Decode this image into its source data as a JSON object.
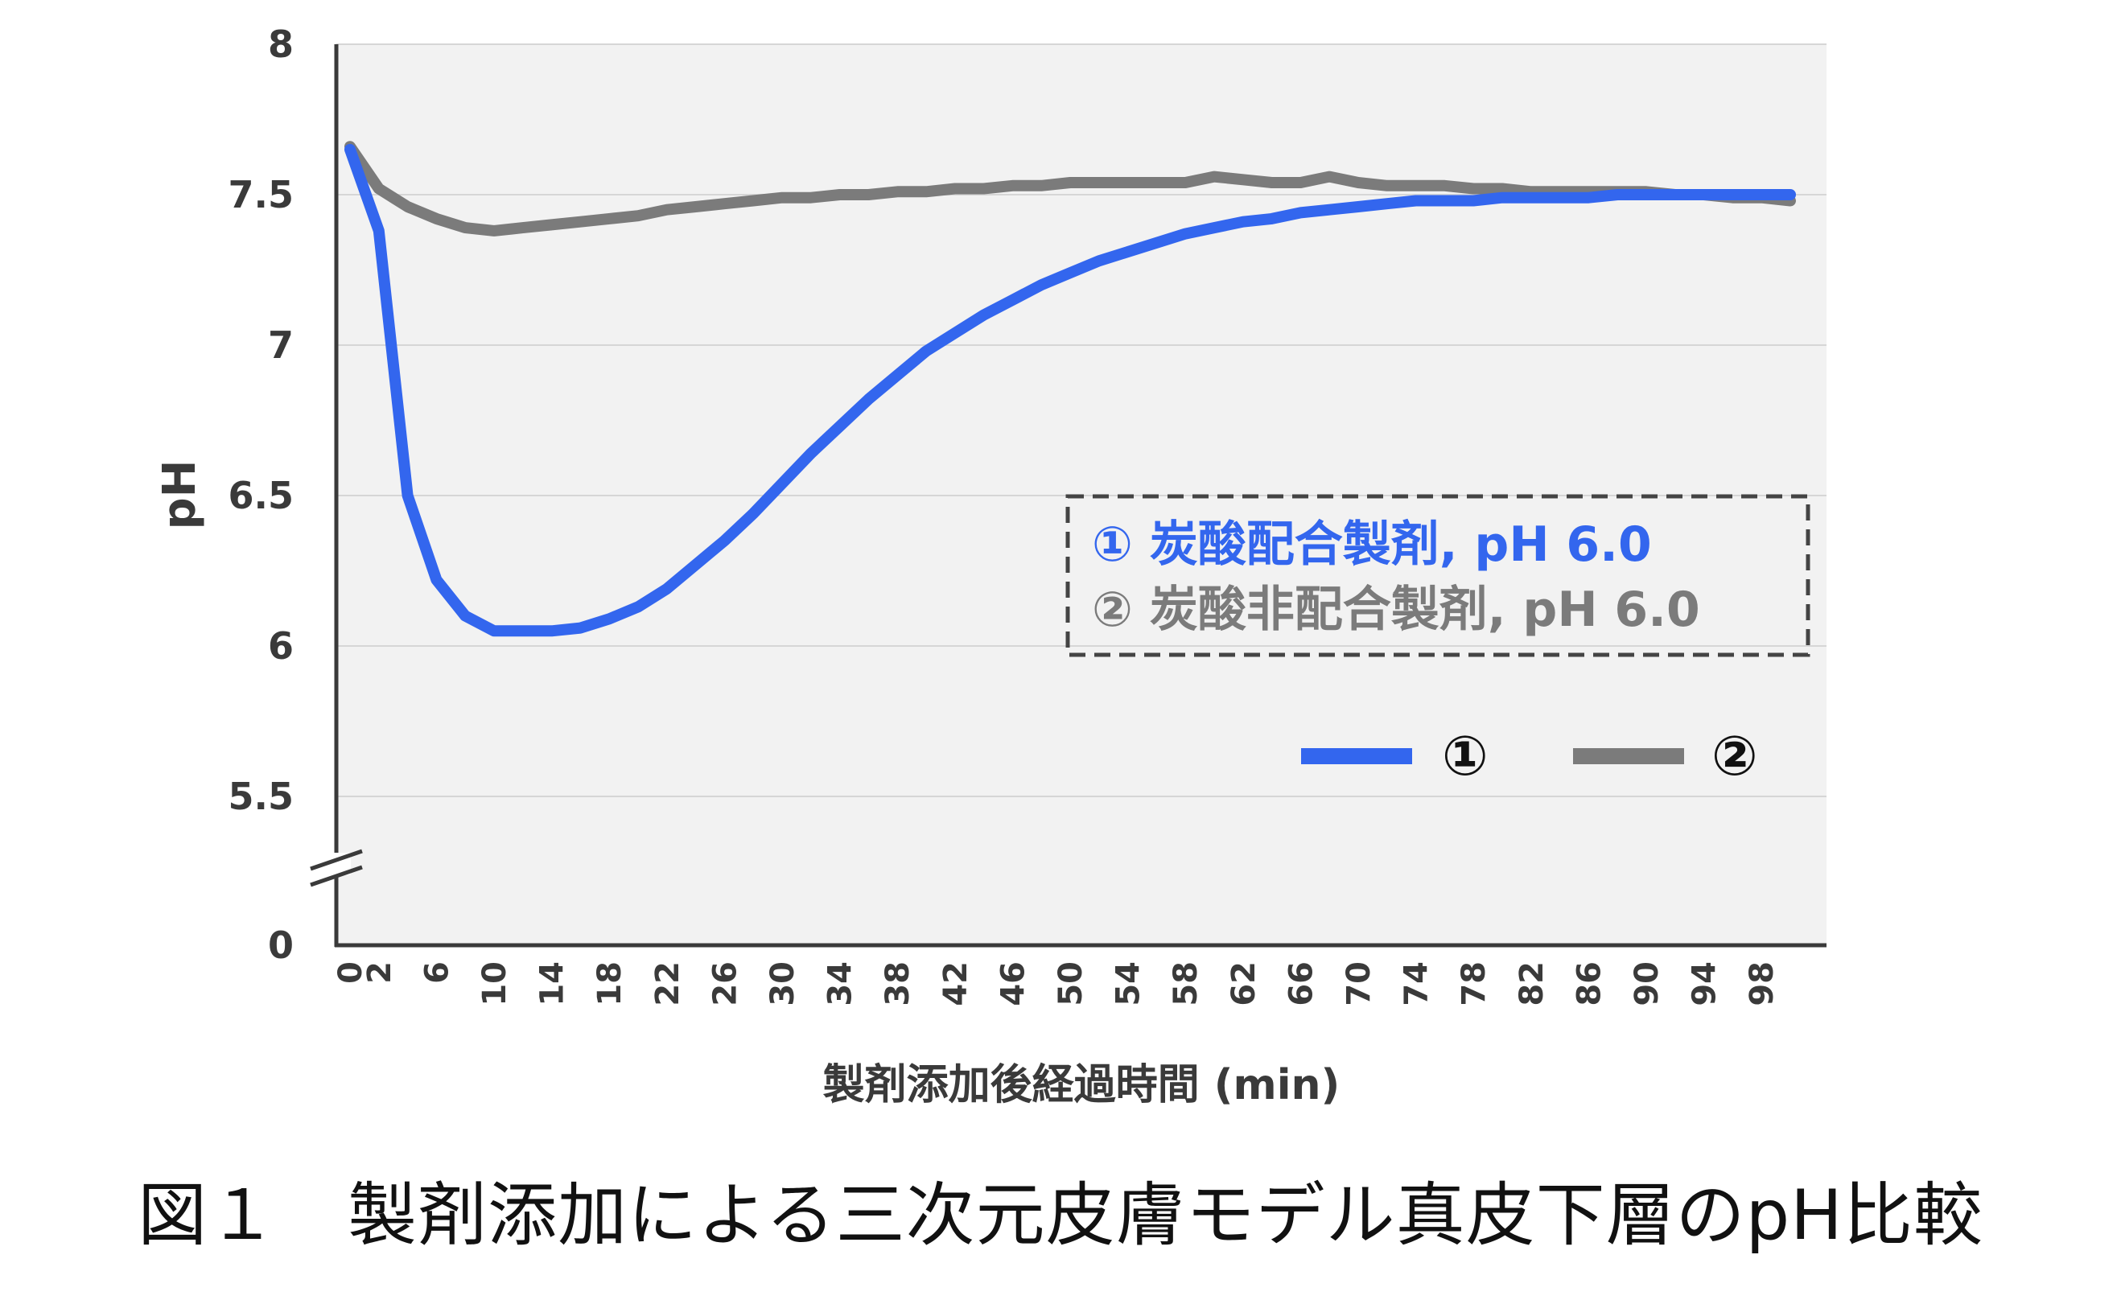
{
  "chart_data": {
    "type": "line",
    "xlabel": "製剤添加後経過時間 (min)",
    "ylabel": "pH",
    "yticks": [
      "8",
      "7.5",
      "7",
      "6.5",
      "6",
      "5.5",
      "0"
    ],
    "ylim": [
      5.0,
      8.0
    ],
    "y_axis_break": true,
    "xlim": [
      0,
      100
    ],
    "xticks": [
      "0",
      "2",
      "6",
      "10",
      "14",
      "18",
      "22",
      "26",
      "30",
      "34",
      "38",
      "42",
      "46",
      "50",
      "54",
      "58",
      "62",
      "66",
      "70",
      "74",
      "78",
      "82",
      "86",
      "90",
      "94",
      "98"
    ],
    "legend_box": {
      "line1": "① 炭酸配合製剤, pH 6.0",
      "line2": "② 炭酸非配合製剤, pH 6.0"
    },
    "legend_keys": [
      "①",
      "②"
    ],
    "series": [
      {
        "name": "①",
        "color": "#3366ee",
        "x": [
          0,
          2,
          4,
          6,
          8,
          10,
          12,
          14,
          16,
          18,
          20,
          22,
          24,
          26,
          28,
          30,
          32,
          34,
          36,
          38,
          40,
          42,
          44,
          46,
          48,
          50,
          52,
          54,
          56,
          58,
          60,
          62,
          64,
          66,
          68,
          70,
          72,
          74,
          76,
          78,
          80,
          82,
          84,
          86,
          88,
          90,
          92,
          94,
          96,
          98,
          100
        ],
        "values": [
          7.65,
          7.38,
          6.5,
          6.22,
          6.1,
          6.05,
          6.05,
          6.05,
          6.06,
          6.09,
          6.13,
          6.19,
          6.27,
          6.35,
          6.44,
          6.54,
          6.64,
          6.73,
          6.82,
          6.9,
          6.98,
          7.04,
          7.1,
          7.15,
          7.2,
          7.24,
          7.28,
          7.31,
          7.34,
          7.37,
          7.39,
          7.41,
          7.42,
          7.44,
          7.45,
          7.46,
          7.47,
          7.48,
          7.48,
          7.48,
          7.49,
          7.49,
          7.49,
          7.49,
          7.5,
          7.5,
          7.5,
          7.5,
          7.5,
          7.5,
          7.5
        ]
      },
      {
        "name": "②",
        "color": "#7b7b7b",
        "x": [
          0,
          2,
          4,
          6,
          8,
          10,
          12,
          14,
          16,
          18,
          20,
          22,
          24,
          26,
          28,
          30,
          32,
          34,
          36,
          38,
          40,
          42,
          44,
          46,
          48,
          50,
          52,
          54,
          56,
          58,
          60,
          62,
          64,
          66,
          68,
          70,
          72,
          74,
          76,
          78,
          80,
          82,
          84,
          86,
          88,
          90,
          92,
          94,
          96,
          98,
          100
        ],
        "values": [
          7.66,
          7.52,
          7.46,
          7.42,
          7.39,
          7.38,
          7.39,
          7.4,
          7.41,
          7.42,
          7.43,
          7.45,
          7.46,
          7.47,
          7.48,
          7.49,
          7.49,
          7.5,
          7.5,
          7.51,
          7.51,
          7.52,
          7.52,
          7.53,
          7.53,
          7.54,
          7.54,
          7.54,
          7.54,
          7.54,
          7.56,
          7.55,
          7.54,
          7.54,
          7.56,
          7.54,
          7.53,
          7.53,
          7.53,
          7.52,
          7.52,
          7.51,
          7.51,
          7.51,
          7.51,
          7.51,
          7.5,
          7.5,
          7.49,
          7.49,
          7.48
        ]
      }
    ]
  },
  "caption": "図１　製剤添加による三次元皮膚モデル真皮下層のpH比較"
}
